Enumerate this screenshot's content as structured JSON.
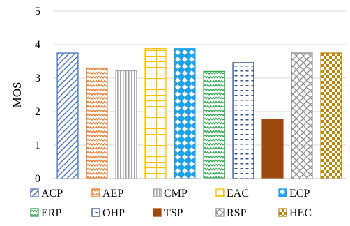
{
  "chart_data": {
    "type": "bar",
    "title": "",
    "xlabel": "",
    "ylabel": "MOS",
    "ylim": [
      0,
      5
    ],
    "yticks": [
      0,
      1,
      2,
      3,
      4,
      5
    ],
    "grid": true,
    "legend_position": "bottom",
    "categories": [
      "ACP",
      "AEP",
      "CMP",
      "EAC",
      "ECP",
      "ERP",
      "OHP",
      "TSP",
      "RSP",
      "HEC"
    ],
    "values": [
      3.75,
      3.3,
      3.22,
      3.88,
      3.88,
      3.2,
      3.46,
      1.77,
      3.75,
      3.75
    ],
    "series_styles": [
      {
        "name": "ACP",
        "color": "#4472C4",
        "pattern": "diagonal-stripes"
      },
      {
        "name": "AEP",
        "color": "#ED7D31",
        "pattern": "zigzag"
      },
      {
        "name": "CMP",
        "color": "#A5A5A5",
        "pattern": "vertical-stripes"
      },
      {
        "name": "EAC",
        "color": "#FFC000",
        "pattern": "grid"
      },
      {
        "name": "ECP",
        "color": "#1EA1E6",
        "pattern": "diamonds"
      },
      {
        "name": "ERP",
        "color": "#34A853",
        "pattern": "zigzag"
      },
      {
        "name": "OHP",
        "color": "#2F4F8F",
        "pattern": "dashes"
      },
      {
        "name": "TSP",
        "color": "#9E480E",
        "pattern": "solid"
      },
      {
        "name": "RSP",
        "color": "#8C8C8C",
        "pattern": "diamond-outline"
      },
      {
        "name": "HEC",
        "color": "#B8860B",
        "pattern": "checker"
      }
    ]
  }
}
